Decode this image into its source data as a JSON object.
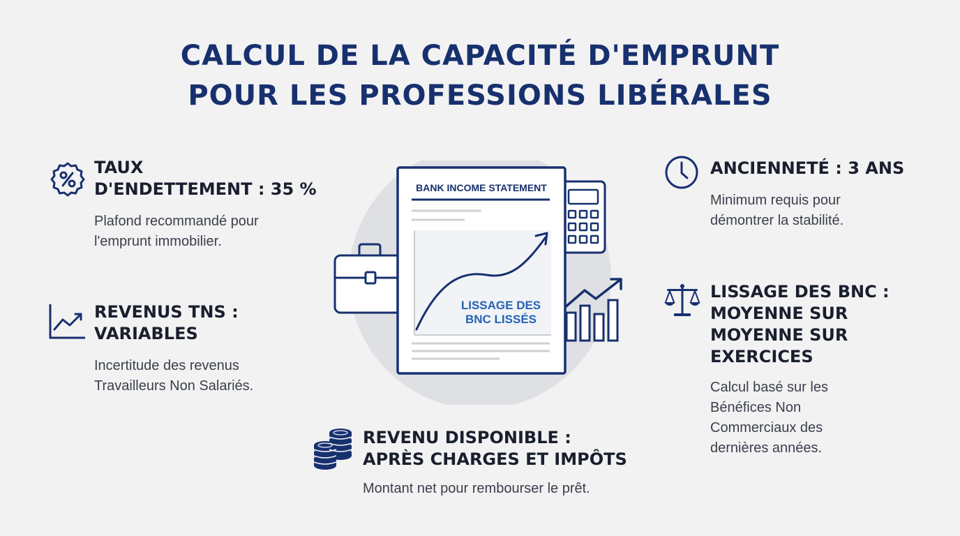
{
  "title": {
    "line1": "CALCUL DE LA CAPACITÉ D'EMPRUNT",
    "line2": "POUR LES PROFESSIONS LIBÉRALES"
  },
  "colors": {
    "navy": "#17306e",
    "background": "#f2f2f3",
    "circle": "#dfe0e4"
  },
  "items": {
    "taux": {
      "icon": "percent-badge-icon",
      "heading_line1": "TAUX",
      "heading_line2": "D'ENDETTEMENT : 35 %",
      "desc_line1": "Plafond recommandé pour",
      "desc_line2": "l'emprunt immobilier."
    },
    "revenus": {
      "icon": "trending-up-icon",
      "heading_line1": "REVENUS TNS :",
      "heading_line2": "VARIABLES",
      "desc_line1": "Incertitude des revenus",
      "desc_line2": "Travailleurs Non Salariés."
    },
    "revenu_disponible": {
      "icon": "coins-stack-icon",
      "heading_line1": "REVENU DISPONIBLE :",
      "heading_line2": "APRÈS CHARGES ET IMPÔTS",
      "desc_line1": "Montant net pour rembourser le prêt."
    },
    "anciennete": {
      "icon": "clock-icon",
      "heading_line1": "ANCIENNETÉ : 3 ANS",
      "desc_line1": "Minimum requis pour",
      "desc_line2": "démontrer la stabilité."
    },
    "lissage": {
      "icon": "balance-scale-icon",
      "heading_line1": "LISSAGE DES BNC :",
      "heading_line2": "MOYENNE SUR",
      "heading_line3": "MOYENNE SUR",
      "heading_line4": "EXERCICES",
      "desc_line1": "Calcul basé sur les",
      "desc_line2": "Bénéfices Non",
      "desc_line3": "Commerciaux des",
      "desc_line4": "dernières années."
    }
  },
  "illustration": {
    "document_title": "BANK INCOME STATEMENT",
    "chart_label_line1": "LISSAGE DES",
    "chart_label_line2": "BNC LISSÉS",
    "icons": [
      "briefcase-icon",
      "calculator-icon",
      "bar-chart-icon",
      "document-icon"
    ]
  }
}
